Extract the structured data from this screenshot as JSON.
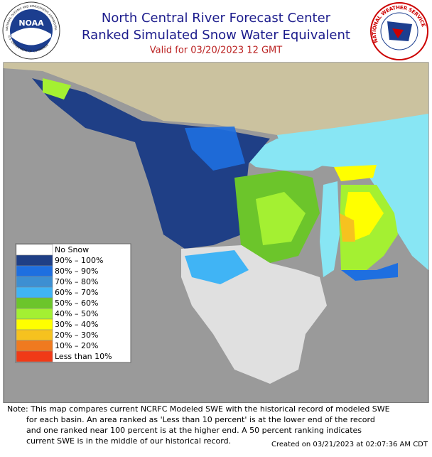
{
  "header": {
    "title": "North Central River Forecast Center",
    "subtitle": "Ranked Simulated Snow Water Equivalent",
    "valid": "Valid for 03/20/2023 12 GMT"
  },
  "logos": {
    "noaa": "NOAA",
    "noaa_ring": "NATIONAL OCEANIC AND ATMOSPHERIC ADMINISTRATION",
    "noaa_dept": "U.S. DEPARTMENT OF COMMERCE",
    "nws": "NATIONAL WEATHER SERVICE"
  },
  "legend": [
    {
      "label": "No Snow",
      "color": "#ffffff"
    },
    {
      "label": "90% – 100%",
      "color": "#1f3f86"
    },
    {
      "label": "80% – 90%",
      "color": "#1e6fe0"
    },
    {
      "label": "70% – 80%",
      "color": "#3d8fd2"
    },
    {
      "label": "60% – 70%",
      "color": "#40b4f5"
    },
    {
      "label": "50% – 60%",
      "color": "#6cc52b"
    },
    {
      "label": "40% – 50%",
      "color": "#a4f032"
    },
    {
      "label": "30% – 40%",
      "color": "#ffff00"
    },
    {
      "label": "20% – 30%",
      "color": "#f6c21f"
    },
    {
      "label": "10% – 20%",
      "color": "#f07a1f"
    },
    {
      "label": "Less than 10%",
      "color": "#f03a17"
    }
  ],
  "note": [
    "Note: This map compares current NCRFC Modeled SWE with the historical record of modeled SWE",
    "for each basin. An area ranked as 'Less than 10 percent' is at the lower end of the record",
    "and one ranked near 100 percent is at the higher end.  A 50 percent ranking indicates",
    "current SWE is in the middle of our historical record."
  ],
  "created": "Created on 03/21/2023 at 02:07:36 AM CDT"
}
